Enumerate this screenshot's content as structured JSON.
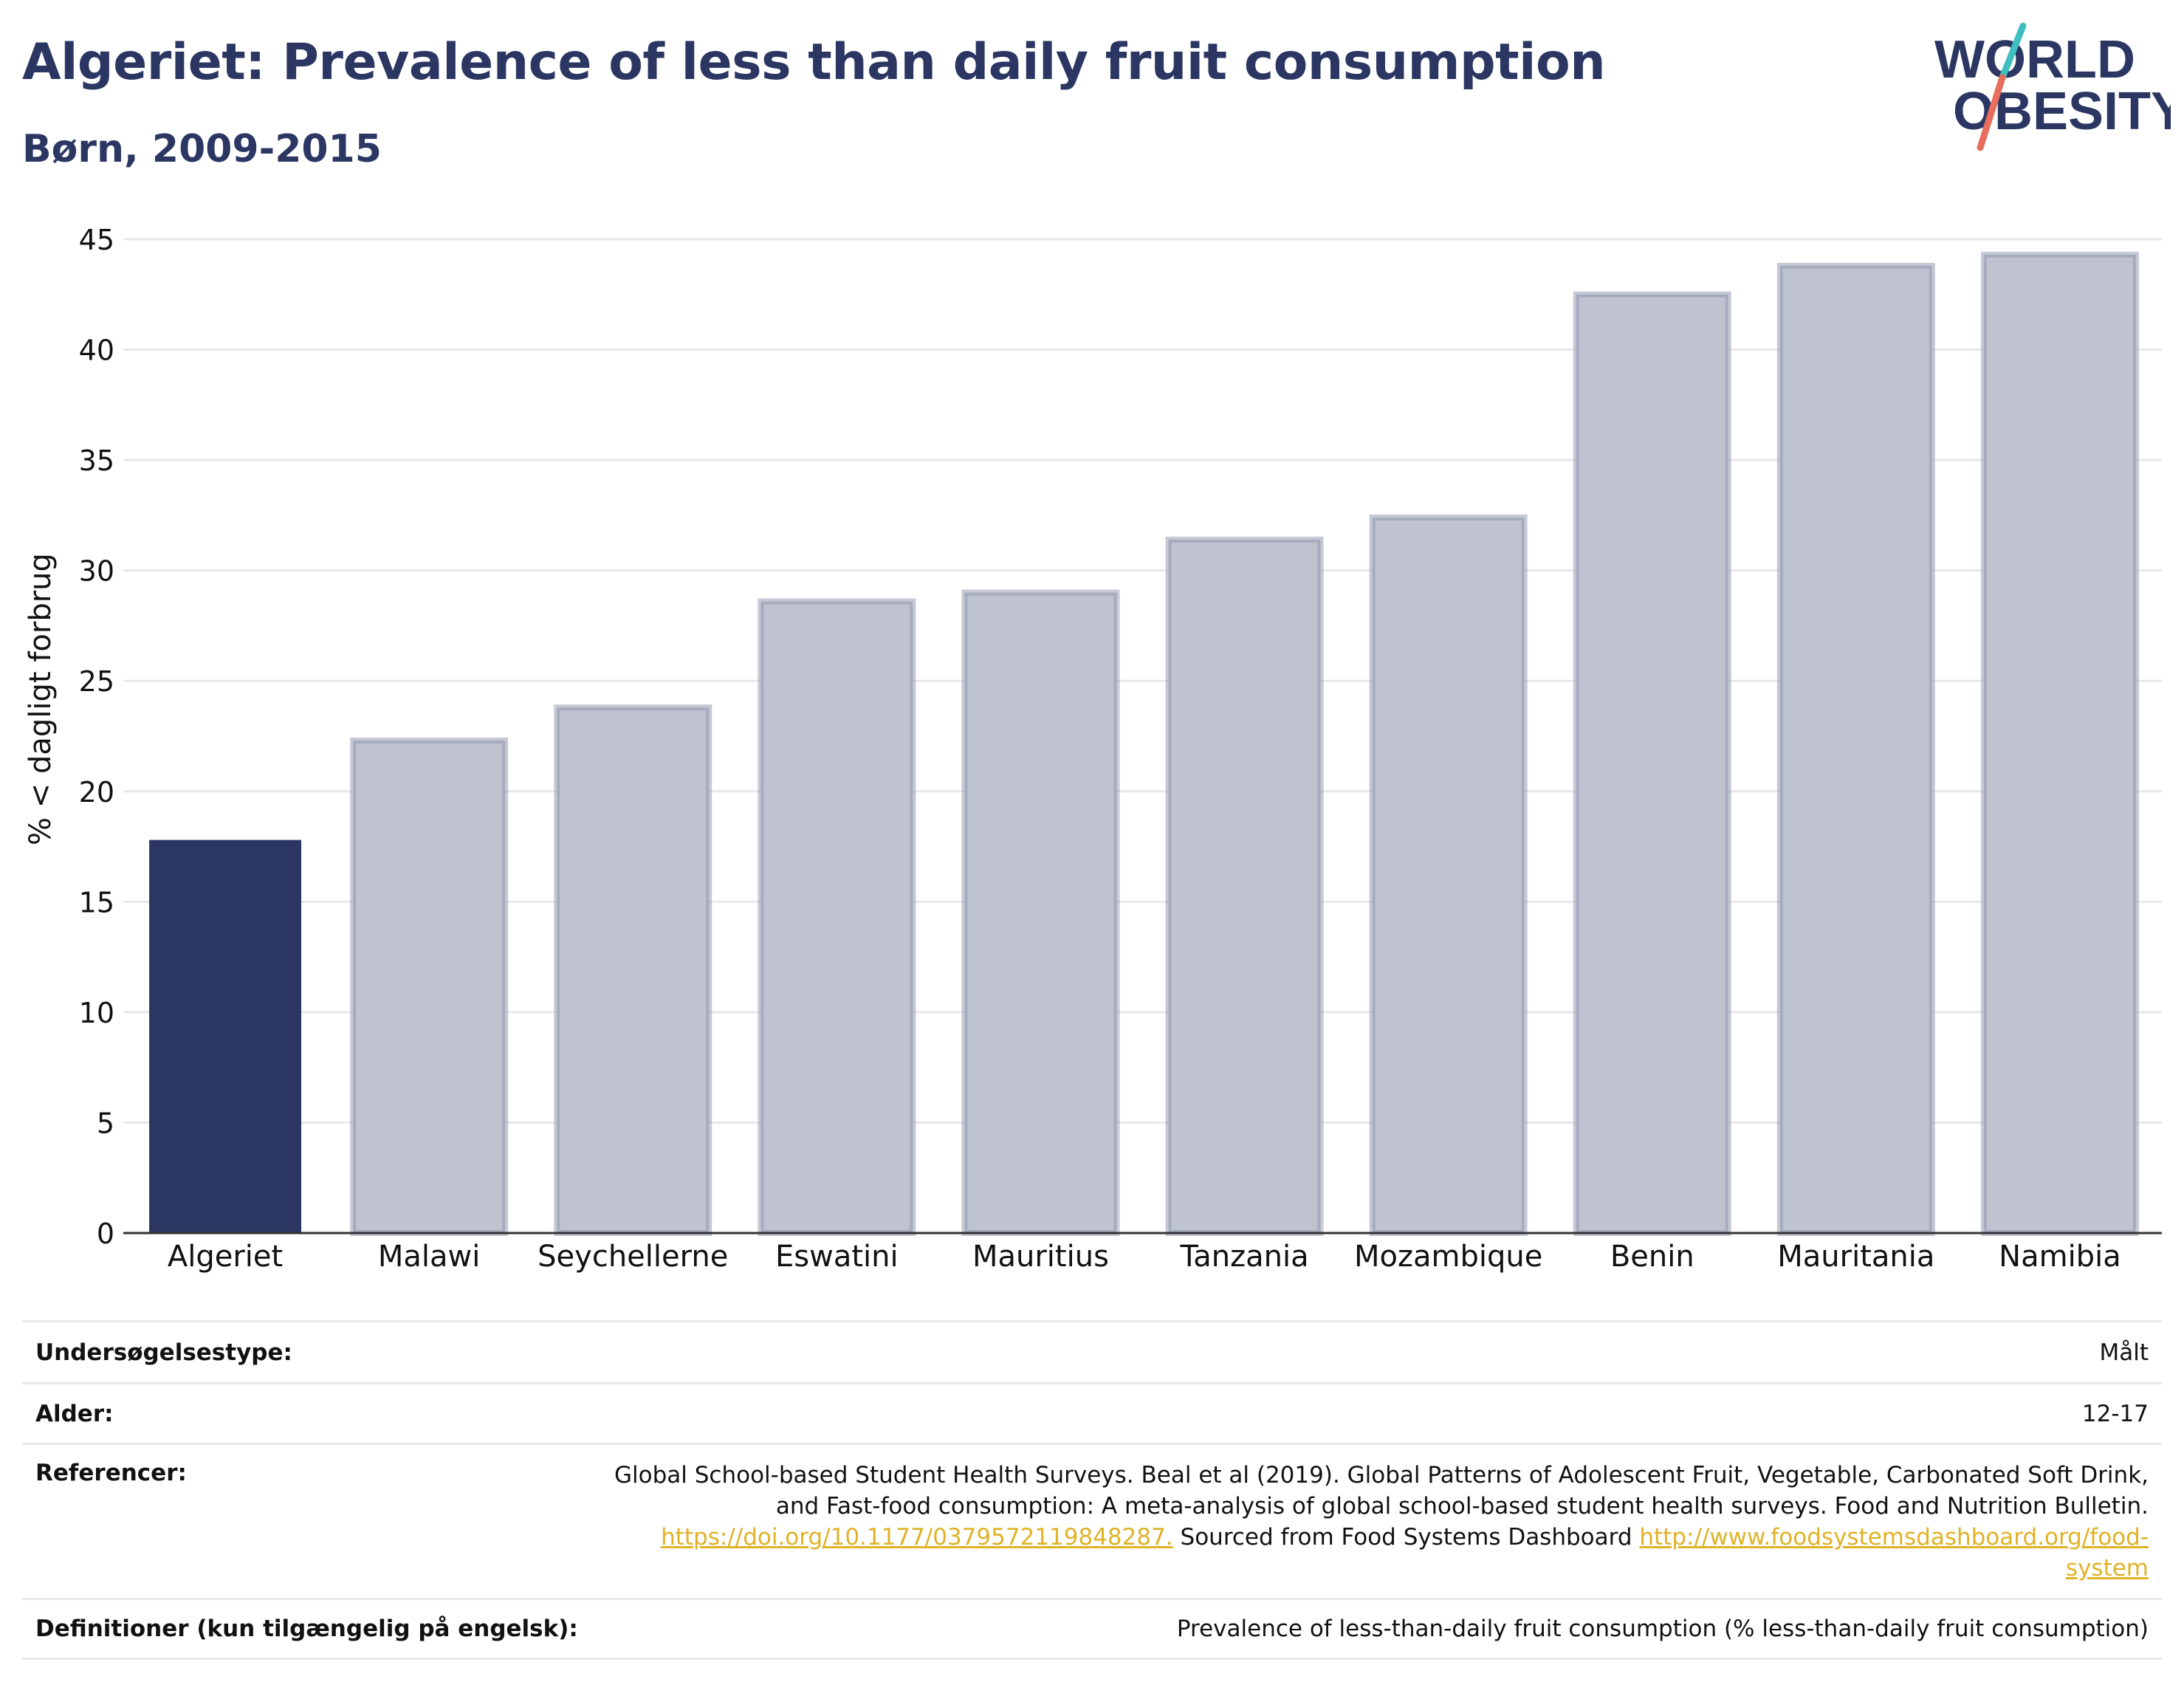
{
  "header": {
    "title": "Algeriet: Prevalence of less than daily fruit consumption",
    "subtitle": "Børn, 2009-2015",
    "logo_line1": "WORLD",
    "logo_line2": "OBESITY"
  },
  "colors": {
    "highlight": "#2b3663",
    "bar_fill": "#bfc2cf",
    "bar_stroke": "#8e93ab",
    "grid": "#e8e8ea",
    "text": "#2b3663",
    "link": "#e0b226",
    "logo_teal": "#3fbfc0",
    "logo_coral": "#e76d5c"
  },
  "chart_data": {
    "type": "bar",
    "title": "Algeriet: Prevalence of less than daily fruit consumption",
    "subtitle": "Børn, 2009-2015",
    "xlabel": "",
    "ylabel": "% < dagligt forbrug",
    "ylim": [
      0,
      45
    ],
    "yticks": [
      0,
      5,
      10,
      15,
      20,
      25,
      30,
      35,
      40,
      45
    ],
    "grid": true,
    "highlight": "Algeriet",
    "categories": [
      "Algeriet",
      "Malawi",
      "Seychellerne",
      "Eswatini",
      "Mauritius",
      "Tanzania",
      "Mozambique",
      "Benin",
      "Mauritania",
      "Namibia"
    ],
    "values": [
      17.8,
      22.3,
      23.8,
      28.6,
      29.0,
      31.4,
      32.4,
      42.5,
      43.8,
      44.3
    ]
  },
  "info": {
    "rows": [
      {
        "label": "Undersøgelsestype:",
        "value": "Målt"
      },
      {
        "label": "Alder:",
        "value": "12-17"
      },
      {
        "label": "Referencer:",
        "value_line1": "Global School-based Student Health Surveys. Beal et al (2019). Global Patterns of Adolescent Fruit, Vegetable, Carbonated Soft Drink,",
        "value_line2": "and Fast-food consumption: A meta-analysis of global school-based student health surveys. Food and Nutrition Bulletin.",
        "link1": "https://doi.org/10.1177/0379572119848287.",
        "mid_text": " Sourced from Food Systems Dashboard ",
        "link2a": "http://www.foodsystemsdashboard.org/food-",
        "link2b": "system"
      },
      {
        "label": "Definitioner (kun tilgængelig på engelsk):",
        "value": "Prevalence of less-than-daily fruit consumption (% less-than-daily fruit consumption)"
      }
    ]
  }
}
